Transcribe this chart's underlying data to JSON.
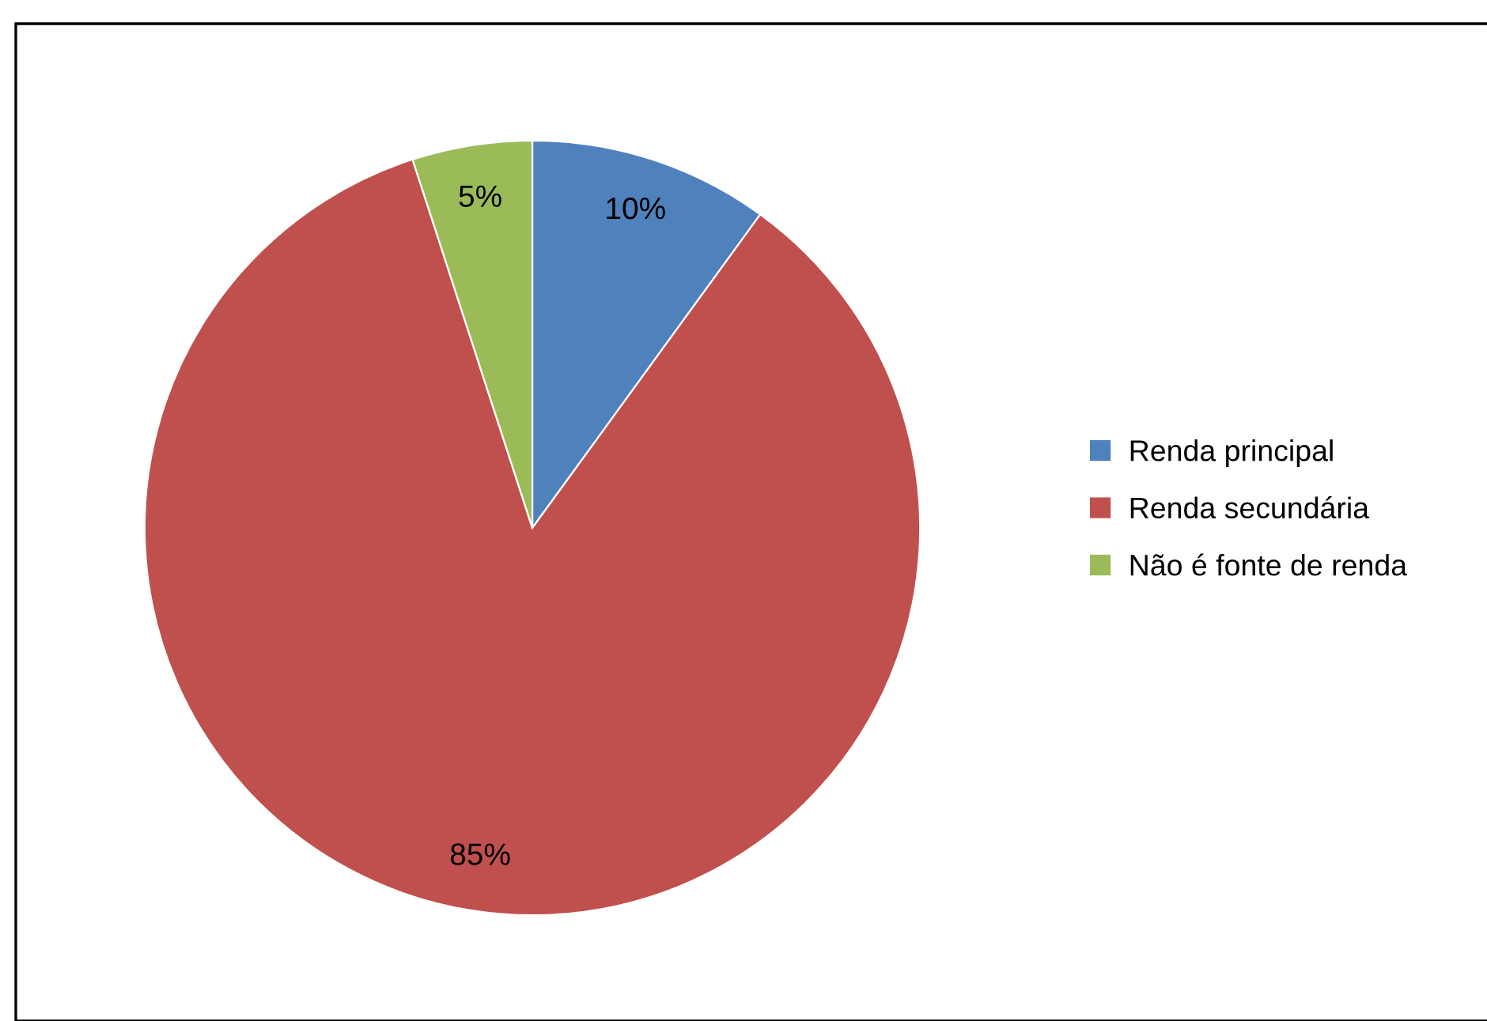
{
  "chart_data": {
    "type": "pie",
    "categories": [
      "Renda principal",
      "Renda secundária",
      "Não é fonte de renda"
    ],
    "values": [
      10,
      85,
      5
    ],
    "colors": [
      "#4f81bd",
      "#c0504d",
      "#9bbb59"
    ],
    "value_labels": [
      "10%",
      "85%",
      "5%"
    ],
    "legend": "right"
  }
}
